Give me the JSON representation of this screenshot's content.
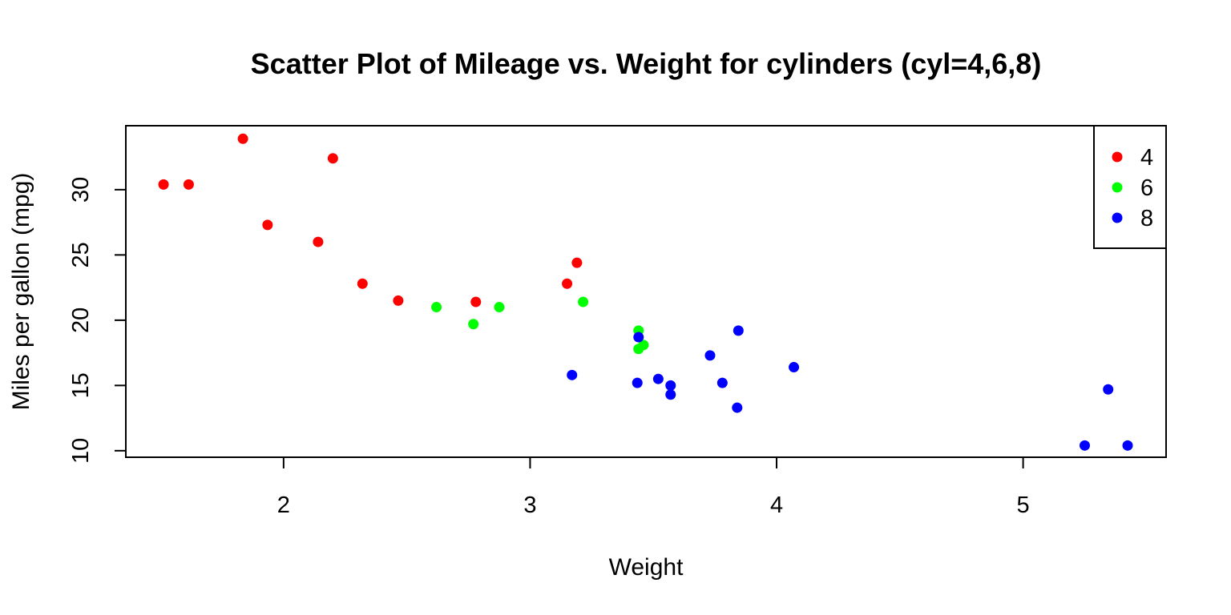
{
  "chart_data": {
    "type": "scatter",
    "title": "Scatter Plot of Mileage vs. Weight for cylinders (cyl=4,6,8)",
    "xlabel": "Weight",
    "ylabel": "Miles per gallon (mpg)",
    "xlim": [
      1.36,
      5.58
    ],
    "ylim": [
      9.5,
      34.9
    ],
    "xticks": [
      "2",
      "3",
      "4",
      "5"
    ],
    "yticks": [
      "10",
      "15",
      "20",
      "25",
      "30"
    ],
    "grid": false,
    "legend_placement": "top-right",
    "series": [
      {
        "name": "4",
        "color": "#ff0000",
        "points": [
          [
            1.513,
            30.4
          ],
          [
            1.615,
            30.4
          ],
          [
            1.835,
            33.9
          ],
          [
            1.935,
            27.3
          ],
          [
            2.14,
            26.0
          ],
          [
            2.2,
            32.4
          ],
          [
            2.32,
            22.8
          ],
          [
            2.465,
            21.5
          ],
          [
            2.78,
            21.4
          ],
          [
            3.15,
            22.8
          ],
          [
            3.19,
            24.4
          ]
        ]
      },
      {
        "name": "6",
        "color": "#00ff00",
        "points": [
          [
            2.62,
            21.0
          ],
          [
            2.77,
            19.7
          ],
          [
            2.875,
            21.0
          ],
          [
            3.215,
            21.4
          ],
          [
            3.44,
            19.2
          ],
          [
            3.44,
            17.8
          ],
          [
            3.46,
            18.1
          ]
        ]
      },
      {
        "name": "8",
        "color": "#0000ff",
        "points": [
          [
            3.17,
            15.8
          ],
          [
            3.435,
            15.2
          ],
          [
            3.44,
            18.7
          ],
          [
            3.52,
            15.5
          ],
          [
            3.57,
            15.0
          ],
          [
            3.57,
            14.3
          ],
          [
            3.73,
            17.3
          ],
          [
            3.78,
            15.2
          ],
          [
            3.84,
            13.3
          ],
          [
            3.845,
            19.2
          ],
          [
            4.07,
            16.4
          ],
          [
            5.25,
            10.4
          ],
          [
            5.345,
            14.7
          ],
          [
            5.424,
            10.4
          ]
        ]
      }
    ]
  }
}
